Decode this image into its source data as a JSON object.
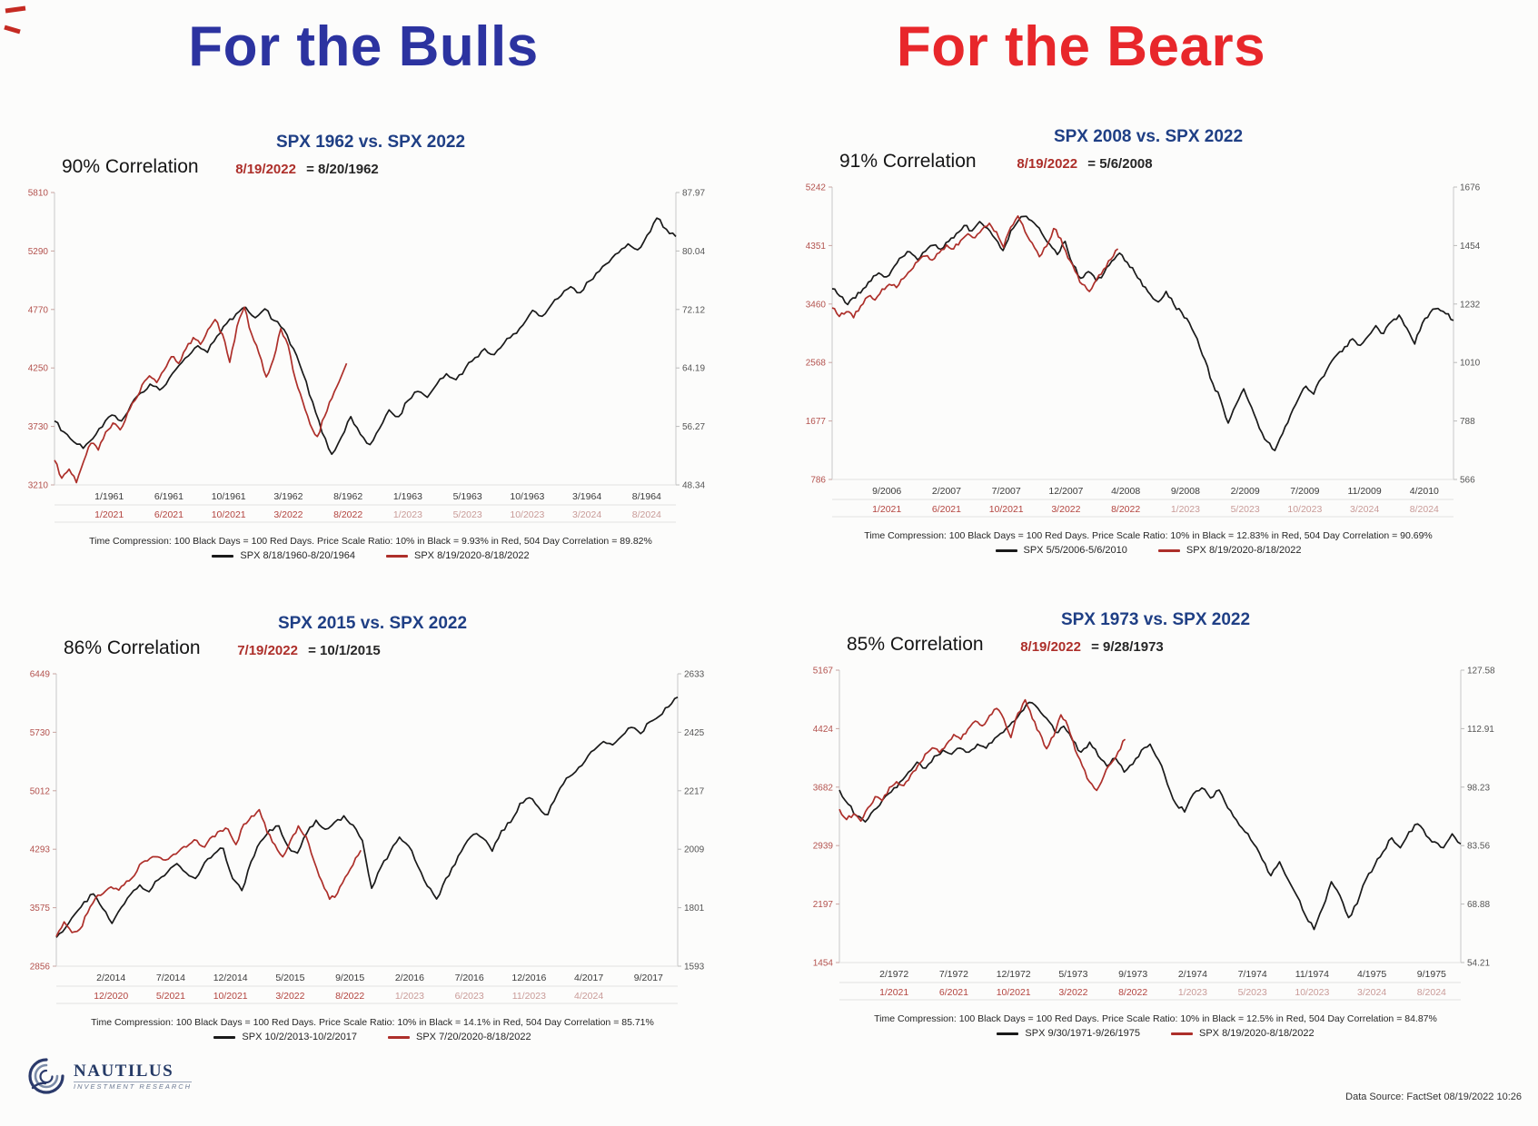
{
  "header": {
    "bulls_title": "For the Bulls",
    "bears_title": "For the Bears",
    "bulls_color": "#2c33a0",
    "bears_color": "#e8272b"
  },
  "footer": {
    "logo_name": "NAUTILUS",
    "logo_sub": "INVESTMENT RESEARCH",
    "logo_icon": "nautilus-spiral-icon",
    "data_source": "Data Source: FactSet    08/19/2022 10:26"
  },
  "colors": {
    "black_series": "#1a1a1a",
    "red_series": "#ad2f2a",
    "left_axis_labels": "#b3524e",
    "right_axis_labels": "#555555",
    "chart_title": "#1f3f85"
  },
  "chart_data": [
    {
      "type": "line",
      "title": "SPX 1962 vs. SPX 2022",
      "correlation_label": "90% Correlation",
      "equation_red": "8/19/2022",
      "equation_black": "= 8/20/1962",
      "left_axis_ticks": [
        "5810",
        "5290",
        "4770",
        "4250",
        "3730",
        "3210"
      ],
      "right_axis_ticks": [
        "87.97",
        "80.04",
        "72.12",
        "64.19",
        "56.27",
        "48.34"
      ],
      "x_ticks_black": [
        "1/1961",
        "6/1961",
        "10/1961",
        "3/1962",
        "8/1962",
        "1/1963",
        "5/1963",
        "10/1963",
        "3/1964",
        "8/1964"
      ],
      "x_ticks_red": [
        "1/2021",
        "6/2021",
        "10/2021",
        "3/2022",
        "8/2022",
        "1/2023",
        "5/2023",
        "10/2023",
        "3/2024",
        "8/2024"
      ],
      "x_red_solid_count": 5,
      "footnote": "Time Compression: 100 Black Days = 100 Red Days.  Price Scale Ratio: 10% in Black = 9.93% in Red, 504 Day Correlation = 89.82%",
      "legend": [
        {
          "label": "SPX 8/18/1960-8/20/1964",
          "color": "#1a1a1a"
        },
        {
          "label": "SPX 8/19/2020-8/18/2022",
          "color": "#ad2f2a"
        }
      ],
      "series": [
        {
          "name": "black",
          "axis": "right",
          "color": "#1a1a1a",
          "x_span": [
            0,
            1
          ],
          "values": [
            57.0,
            55.5,
            54.2,
            53.3,
            54.6,
            56.2,
            57.8,
            57.0,
            59.2,
            60.8,
            62.0,
            61.2,
            62.8,
            64.5,
            65.8,
            67.2,
            66.3,
            68.5,
            70.2,
            71.5,
            72.4,
            71.0,
            72.2,
            70.6,
            69.4,
            66.8,
            63.4,
            59.6,
            55.4,
            52.5,
            54.8,
            57.6,
            55.2,
            53.8,
            56.0,
            58.5,
            57.6,
            59.8,
            61.0,
            60.2,
            62.0,
            63.4,
            62.6,
            64.2,
            65.6,
            66.8,
            66.0,
            67.5,
            68.8,
            70.0,
            72.0,
            71.2,
            72.8,
            74.0,
            75.2,
            74.4,
            76.0,
            77.3,
            78.5,
            79.8,
            81.0,
            80.2,
            82.2,
            84.5,
            83.0,
            82.0
          ]
        },
        {
          "name": "red",
          "axis": "left",
          "color": "#ad2f2a",
          "x_span": [
            0,
            0.47
          ],
          "values": [
            3430,
            3270,
            3350,
            3230,
            3420,
            3580,
            3520,
            3680,
            3760,
            3700,
            3850,
            3960,
            4100,
            4180,
            4120,
            4230,
            4350,
            4290,
            4420,
            4520,
            4460,
            4590,
            4680,
            4550,
            4300,
            4620,
            4790,
            4550,
            4380,
            4170,
            4330,
            4600,
            4450,
            4150,
            3950,
            3750,
            3640,
            3820,
            3980,
            4130,
            4290
          ]
        }
      ]
    },
    {
      "type": "line",
      "title": "SPX 2008 vs. SPX 2022",
      "correlation_label": "91% Correlation",
      "equation_red": "8/19/2022",
      "equation_black": "= 5/6/2008",
      "left_axis_ticks": [
        "5242",
        "4351",
        "3460",
        "2568",
        "1677",
        "786"
      ],
      "right_axis_ticks": [
        "1676",
        "1454",
        "1232",
        "1010",
        "788",
        "566"
      ],
      "x_ticks_black": [
        "9/2006",
        "2/2007",
        "7/2007",
        "12/2007",
        "4/2008",
        "9/2008",
        "2/2009",
        "7/2009",
        "11/2009",
        "4/2010"
      ],
      "x_ticks_red": [
        "1/2021",
        "6/2021",
        "10/2021",
        "3/2022",
        "8/2022",
        "1/2023",
        "5/2023",
        "10/2023",
        "3/2024",
        "8/2024"
      ],
      "x_red_solid_count": 5,
      "footnote": "Time Compression: 100 Black Days = 100 Red Days.  Price Scale Ratio: 10% in Black = 12.83% in Red, 504 Day Correlation = 90.69%",
      "legend": [
        {
          "label": "SPX 5/5/2006-5/6/2010",
          "color": "#1a1a1a"
        },
        {
          "label": "SPX 8/19/2020-8/18/2022",
          "color": "#ad2f2a"
        }
      ],
      "series": [
        {
          "name": "black",
          "axis": "right",
          "color": "#1a1a1a",
          "x_span": [
            0,
            1
          ],
          "values": [
            1290,
            1262,
            1230,
            1255,
            1290,
            1320,
            1350,
            1335,
            1375,
            1410,
            1430,
            1400,
            1432,
            1455,
            1440,
            1470,
            1500,
            1530,
            1510,
            1545,
            1520,
            1480,
            1435,
            1510,
            1550,
            1565,
            1540,
            1500,
            1460,
            1420,
            1470,
            1380,
            1330,
            1355,
            1320,
            1350,
            1395,
            1425,
            1390,
            1350,
            1300,
            1267,
            1240,
            1280,
            1230,
            1200,
            1160,
            1100,
            1020,
            930,
            870,
            780,
            850,
            910,
            840,
            760,
            710,
            676,
            740,
            810,
            870,
            920,
            890,
            950,
            1000,
            1040,
            1070,
            1100,
            1075,
            1110,
            1150,
            1120,
            1165,
            1190,
            1140,
            1080,
            1160,
            1200,
            1215,
            1195,
            1170
          ]
        },
        {
          "name": "red",
          "axis": "left",
          "color": "#ad2f2a",
          "x_span": [
            0,
            0.46
          ],
          "values": [
            3400,
            3270,
            3340,
            3250,
            3430,
            3570,
            3520,
            3690,
            3760,
            3710,
            3850,
            3970,
            4110,
            4190,
            4130,
            4240,
            4360,
            4300,
            4430,
            4530,
            4470,
            4600,
            4690,
            4560,
            4320,
            4630,
            4800,
            4560,
            4390,
            4180,
            4340,
            4610,
            4460,
            4160,
            3960,
            3760,
            3650,
            3830,
            3990,
            4140,
            4300
          ]
        }
      ]
    },
    {
      "type": "line",
      "title": "SPX 2015 vs. SPX 2022",
      "correlation_label": "86% Correlation",
      "equation_red": "7/19/2022",
      "equation_black": "= 10/1/2015",
      "left_axis_ticks": [
        "6449",
        "5730",
        "5012",
        "4293",
        "3575",
        "2856"
      ],
      "right_axis_ticks": [
        "2633",
        "2425",
        "2217",
        "2009",
        "1801",
        "1593"
      ],
      "x_ticks_black": [
        "2/2014",
        "7/2014",
        "12/2014",
        "5/2015",
        "9/2015",
        "2/2016",
        "7/2016",
        "12/2016",
        "4/2017",
        "9/2017"
      ],
      "x_ticks_red": [
        "12/2020",
        "5/2021",
        "10/2021",
        "3/2022",
        "8/2022",
        "1/2023",
        "6/2023",
        "11/2023",
        "4/2024"
      ],
      "x_red_solid_count": 5,
      "footnote": "Time Compression: 100 Black Days = 100 Red Days.  Price Scale Ratio: 10% in Black = 14.1% in Red, 504 Day Correlation = 85.71%",
      "legend": [
        {
          "label": "SPX 10/2/2013-10/2/2017",
          "color": "#1a1a1a"
        },
        {
          "label": "SPX 7/20/2020-8/18/2022",
          "color": "#ad2f2a"
        }
      ],
      "series": [
        {
          "name": "black",
          "axis": "right",
          "color": "#1a1a1a",
          "x_span": [
            0,
            1
          ],
          "values": [
            1695,
            1730,
            1778,
            1822,
            1850,
            1798,
            1745,
            1802,
            1848,
            1882,
            1858,
            1900,
            1928,
            1958,
            1925,
            1905,
            1962,
            1992,
            2012,
            1905,
            1862,
            1965,
            2035,
            2078,
            2092,
            2018,
            1995,
            2065,
            2112,
            2080,
            2105,
            2128,
            2095,
            2040,
            1870,
            1945,
            2000,
            2052,
            2020,
            1948,
            1878,
            1832,
            1905,
            1955,
            2022,
            2062,
            2048,
            2002,
            2075,
            2105,
            2172,
            2192,
            2158,
            2132,
            2205,
            2262,
            2285,
            2322,
            2362,
            2392,
            2380,
            2412,
            2442,
            2420,
            2462,
            2482,
            2515,
            2550
          ]
        },
        {
          "name": "red",
          "axis": "left",
          "color": "#ad2f2a",
          "x_span": [
            0,
            0.49
          ],
          "values": [
            3220,
            3400,
            3270,
            3310,
            3510,
            3690,
            3750,
            3830,
            3790,
            3900,
            3970,
            4130,
            4180,
            4200,
            4160,
            4230,
            4300,
            4350,
            4400,
            4320,
            4450,
            4520,
            4540,
            4350,
            4600,
            4700,
            4780,
            4500,
            4350,
            4200,
            4400,
            4580,
            4450,
            4150,
            3900,
            3680,
            3750,
            3950,
            4100,
            4280
          ]
        }
      ]
    },
    {
      "type": "line",
      "title": "SPX 1973 vs. SPX 2022",
      "correlation_label": "85% Correlation",
      "equation_red": "8/19/2022",
      "equation_black": "= 9/28/1973",
      "left_axis_ticks": [
        "5167",
        "4424",
        "3682",
        "2939",
        "2197",
        "1454"
      ],
      "right_axis_ticks": [
        "127.58",
        "112.91",
        "98.23",
        "83.56",
        "68.88",
        "54.21"
      ],
      "x_ticks_black": [
        "2/1972",
        "7/1972",
        "12/1972",
        "5/1973",
        "9/1973",
        "2/1974",
        "7/1974",
        "11/1974",
        "4/1975",
        "9/1975"
      ],
      "x_ticks_red": [
        "1/2021",
        "6/2021",
        "10/2021",
        "3/2022",
        "8/2022",
        "1/2023",
        "5/2023",
        "10/2023",
        "3/2024",
        "8/2024"
      ],
      "x_red_solid_count": 5,
      "footnote": "Time Compression: 100 Black Days = 100 Red Days.  Price Scale Ratio: 10% in Black = 12.5% in Red, 504 Day Correlation = 84.87%",
      "legend": [
        {
          "label": "SPX 9/30/1971-9/26/1975",
          "color": "#1a1a1a"
        },
        {
          "label": "SPX 8/19/2020-8/18/2022",
          "color": "#ad2f2a"
        }
      ],
      "series": [
        {
          "name": "black",
          "axis": "right",
          "color": "#1a1a1a",
          "x_span": [
            0,
            1
          ],
          "values": [
            97.5,
            94.0,
            91.0,
            89.5,
            92.5,
            95.0,
            97.0,
            99.5,
            102.0,
            104.5,
            103.0,
            106.0,
            107.5,
            106.5,
            108.0,
            107.0,
            109.0,
            108.0,
            110.5,
            112.0,
            114.5,
            117.0,
            119.5,
            118.0,
            115.5,
            112.0,
            113.5,
            110.0,
            107.0,
            109.5,
            106.0,
            103.5,
            105.5,
            102.0,
            104.0,
            107.5,
            109.0,
            105.0,
            99.0,
            94.0,
            92.0,
            96.5,
            98.0,
            95.5,
            97.5,
            93.0,
            90.0,
            87.0,
            84.0,
            80.0,
            76.0,
            79.5,
            75.0,
            71.0,
            66.0,
            62.5,
            68.0,
            74.5,
            71.0,
            65.5,
            69.0,
            75.0,
            78.5,
            82.0,
            85.5,
            83.0,
            87.0,
            89.0,
            86.0,
            84.5,
            83.0,
            86.5,
            84.0
          ]
        },
        {
          "name": "red",
          "axis": "left",
          "color": "#ad2f2a",
          "x_span": [
            0,
            0.46
          ],
          "values": [
            3400,
            3270,
            3340,
            3250,
            3420,
            3560,
            3510,
            3680,
            3750,
            3700,
            3840,
            3960,
            4100,
            4180,
            4120,
            4230,
            4350,
            4290,
            4420,
            4520,
            4460,
            4590,
            4680,
            4550,
            4310,
            4620,
            4790,
            4550,
            4380,
            4170,
            4330,
            4600,
            4450,
            4150,
            3950,
            3750,
            3640,
            3820,
            3980,
            4130,
            4290
          ]
        }
      ]
    }
  ]
}
